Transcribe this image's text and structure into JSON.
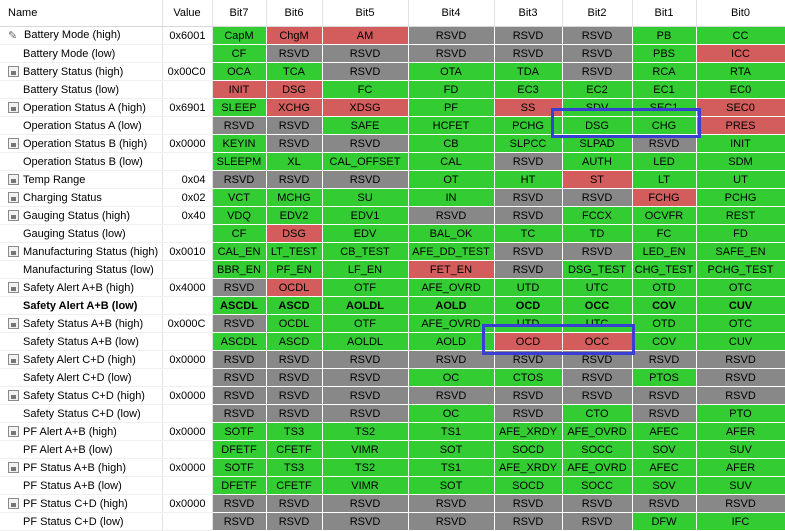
{
  "columns": [
    "Name",
    "Value",
    "Bit7",
    "Bit6",
    "Bit5",
    "Bit4",
    "Bit3",
    "Bit2",
    "Bit1",
    "Bit0"
  ],
  "rows": [
    {
      "icon": "pen",
      "name": "Battery Mode (high)",
      "value": "0x6001",
      "bold": false,
      "bits": [
        [
          "CapM",
          "g"
        ],
        [
          "ChgM",
          "r"
        ],
        [
          "AM",
          "r"
        ],
        [
          "RSVD",
          "y"
        ],
        [
          "RSVD",
          "y"
        ],
        [
          "RSVD",
          "y"
        ],
        [
          "PB",
          "g"
        ],
        [
          "CC",
          "g"
        ]
      ]
    },
    {
      "icon": "",
      "name": "Battery Mode (low)",
      "value": "",
      "bold": false,
      "bits": [
        [
          "CF",
          "g"
        ],
        [
          "RSVD",
          "y"
        ],
        [
          "RSVD",
          "y"
        ],
        [
          "RSVD",
          "y"
        ],
        [
          "RSVD",
          "y"
        ],
        [
          "RSVD",
          "y"
        ],
        [
          "PBS",
          "g"
        ],
        [
          "ICC",
          "r"
        ]
      ]
    },
    {
      "icon": "lock",
      "name": "Battery Status (high)",
      "value": "0x00C0",
      "bold": false,
      "bits": [
        [
          "OCA",
          "g"
        ],
        [
          "TCA",
          "g"
        ],
        [
          "RSVD",
          "y"
        ],
        [
          "OTA",
          "g"
        ],
        [
          "TDA",
          "g"
        ],
        [
          "RSVD",
          "y"
        ],
        [
          "RCA",
          "g"
        ],
        [
          "RTA",
          "g"
        ]
      ]
    },
    {
      "icon": "",
      "name": "Battery Status (low)",
      "value": "",
      "bold": false,
      "bits": [
        [
          "INIT",
          "r"
        ],
        [
          "DSG",
          "r"
        ],
        [
          "FC",
          "g"
        ],
        [
          "FD",
          "g"
        ],
        [
          "EC3",
          "g"
        ],
        [
          "EC2",
          "g"
        ],
        [
          "EC1",
          "g"
        ],
        [
          "EC0",
          "g"
        ]
      ]
    },
    {
      "icon": "lock",
      "name": "Operation Status A (high)",
      "value": "0x6901",
      "bold": false,
      "bits": [
        [
          "SLEEP",
          "g"
        ],
        [
          "XCHG",
          "r"
        ],
        [
          "XDSG",
          "r"
        ],
        [
          "PF",
          "g"
        ],
        [
          "SS",
          "r"
        ],
        [
          "SDV",
          "g"
        ],
        [
          "SEC1",
          "g"
        ],
        [
          "SEC0",
          "r"
        ]
      ]
    },
    {
      "icon": "",
      "name": "Operation Status A (low)",
      "value": "",
      "bold": false,
      "bits": [
        [
          "RSVD",
          "y"
        ],
        [
          "RSVD",
          "y"
        ],
        [
          "SAFE",
          "g"
        ],
        [
          "HCFET",
          "g"
        ],
        [
          "PCHG",
          "g"
        ],
        [
          "DSG",
          "g"
        ],
        [
          "CHG",
          "g"
        ],
        [
          "PRES",
          "r"
        ]
      ]
    },
    {
      "icon": "lock",
      "name": "Operation Status B (high)",
      "value": "0x0000",
      "bold": false,
      "bits": [
        [
          "KEYIN",
          "g"
        ],
        [
          "RSVD",
          "y"
        ],
        [
          "RSVD",
          "y"
        ],
        [
          "CB",
          "g"
        ],
        [
          "SLPCC",
          "g"
        ],
        [
          "SLPAD",
          "g"
        ],
        [
          "RSVD",
          "y"
        ],
        [
          "INIT",
          "g"
        ]
      ]
    },
    {
      "icon": "",
      "name": "Operation Status B (low)",
      "value": "",
      "bold": false,
      "bits": [
        [
          "SLEEPM",
          "g"
        ],
        [
          "XL",
          "g"
        ],
        [
          "CAL_OFFSET",
          "g"
        ],
        [
          "CAL",
          "g"
        ],
        [
          "RSVD",
          "y"
        ],
        [
          "AUTH",
          "g"
        ],
        [
          "LED",
          "g"
        ],
        [
          "SDM",
          "g"
        ]
      ]
    },
    {
      "icon": "lock",
      "name": "Temp Range",
      "value": "0x04",
      "bold": false,
      "bits": [
        [
          "RSVD",
          "y"
        ],
        [
          "RSVD",
          "y"
        ],
        [
          "RSVD",
          "y"
        ],
        [
          "OT",
          "g"
        ],
        [
          "HT",
          "g"
        ],
        [
          "ST",
          "r"
        ],
        [
          "LT",
          "g"
        ],
        [
          "UT",
          "g"
        ]
      ]
    },
    {
      "icon": "lock",
      "name": "Charging Status",
      "value": "0x02",
      "bold": false,
      "bits": [
        [
          "VCT",
          "g"
        ],
        [
          "MCHG",
          "g"
        ],
        [
          "SU",
          "g"
        ],
        [
          "IN",
          "g"
        ],
        [
          "RSVD",
          "y"
        ],
        [
          "RSVD",
          "y"
        ],
        [
          "FCHG",
          "r"
        ],
        [
          "PCHG",
          "g"
        ]
      ]
    },
    {
      "icon": "lock",
      "name": "Gauging Status (high)",
      "value": "0x40",
      "bold": false,
      "bits": [
        [
          "VDQ",
          "g"
        ],
        [
          "EDV2",
          "g"
        ],
        [
          "EDV1",
          "g"
        ],
        [
          "RSVD",
          "y"
        ],
        [
          "RSVD",
          "y"
        ],
        [
          "FCCX",
          "g"
        ],
        [
          "OCVFR",
          "g"
        ],
        [
          "REST",
          "g"
        ]
      ]
    },
    {
      "icon": "",
      "name": "Gauging Status (low)",
      "value": "",
      "bold": false,
      "bits": [
        [
          "CF",
          "g"
        ],
        [
          "DSG",
          "r"
        ],
        [
          "EDV",
          "g"
        ],
        [
          "BAL_OK",
          "g"
        ],
        [
          "TC",
          "g"
        ],
        [
          "TD",
          "g"
        ],
        [
          "FC",
          "g"
        ],
        [
          "FD",
          "g"
        ]
      ]
    },
    {
      "icon": "lock",
      "name": "Manufacturing Status (high)",
      "value": "0x0010",
      "bold": false,
      "bits": [
        [
          "CAL_EN",
          "g"
        ],
        [
          "LT_TEST",
          "g"
        ],
        [
          "CB_TEST",
          "g"
        ],
        [
          "AFE_DD_TEST",
          "g"
        ],
        [
          "RSVD",
          "y"
        ],
        [
          "RSVD",
          "y"
        ],
        [
          "LED_EN",
          "g"
        ],
        [
          "SAFE_EN",
          "g"
        ]
      ]
    },
    {
      "icon": "",
      "name": "Manufacturing Status (low)",
      "value": "",
      "bold": false,
      "bits": [
        [
          "BBR_EN",
          "g"
        ],
        [
          "PF_EN",
          "g"
        ],
        [
          "LF_EN",
          "g"
        ],
        [
          "FET_EN",
          "r"
        ],
        [
          "RSVD",
          "y"
        ],
        [
          "DSG_TEST",
          "g"
        ],
        [
          "CHG_TEST",
          "g"
        ],
        [
          "PCHG_TEST",
          "g"
        ]
      ]
    },
    {
      "icon": "lock",
      "name": "Safety Alert A+B (high)",
      "value": "0x4000",
      "bold": false,
      "bits": [
        [
          "RSVD",
          "y"
        ],
        [
          "OCDL",
          "r"
        ],
        [
          "OTF",
          "g"
        ],
        [
          "AFE_OVRD",
          "g"
        ],
        [
          "UTD",
          "g"
        ],
        [
          "UTC",
          "g"
        ],
        [
          "OTD",
          "g"
        ],
        [
          "OTC",
          "g"
        ]
      ]
    },
    {
      "icon": "",
      "name": "Safety Alert A+B (low)",
      "value": "",
      "bold": true,
      "bits": [
        [
          "ASCDL",
          "g"
        ],
        [
          "ASCD",
          "g"
        ],
        [
          "AOLDL",
          "g"
        ],
        [
          "AOLD",
          "g"
        ],
        [
          "OCD",
          "g"
        ],
        [
          "OCC",
          "g"
        ],
        [
          "COV",
          "g"
        ],
        [
          "CUV",
          "g"
        ]
      ]
    },
    {
      "icon": "lock",
      "name": "Safety Status A+B (high)",
      "value": "0x000C",
      "bold": false,
      "bits": [
        [
          "RSVD",
          "y"
        ],
        [
          "OCDL",
          "g"
        ],
        [
          "OTF",
          "g"
        ],
        [
          "AFE_OVRD",
          "g"
        ],
        [
          "UTD",
          "g"
        ],
        [
          "UTC",
          "g"
        ],
        [
          "OTD",
          "g"
        ],
        [
          "OTC",
          "g"
        ]
      ]
    },
    {
      "icon": "",
      "name": "Safety Status A+B (low)",
      "value": "",
      "bold": false,
      "bits": [
        [
          "ASCDL",
          "g"
        ],
        [
          "ASCD",
          "g"
        ],
        [
          "AOLDL",
          "g"
        ],
        [
          "AOLD",
          "g"
        ],
        [
          "OCD",
          "r"
        ],
        [
          "OCC",
          "r"
        ],
        [
          "COV",
          "g"
        ],
        [
          "CUV",
          "g"
        ]
      ]
    },
    {
      "icon": "lock",
      "name": "Safety Alert C+D (high)",
      "value": "0x0000",
      "bold": false,
      "bits": [
        [
          "RSVD",
          "y"
        ],
        [
          "RSVD",
          "y"
        ],
        [
          "RSVD",
          "y"
        ],
        [
          "RSVD",
          "y"
        ],
        [
          "RSVD",
          "y"
        ],
        [
          "RSVD",
          "y"
        ],
        [
          "RSVD",
          "y"
        ],
        [
          "RSVD",
          "y"
        ]
      ]
    },
    {
      "icon": "",
      "name": "Safety Alert C+D (low)",
      "value": "",
      "bold": false,
      "bits": [
        [
          "RSVD",
          "y"
        ],
        [
          "RSVD",
          "y"
        ],
        [
          "RSVD",
          "y"
        ],
        [
          "OC",
          "g"
        ],
        [
          "CTOS",
          "g"
        ],
        [
          "RSVD",
          "y"
        ],
        [
          "PTOS",
          "g"
        ],
        [
          "RSVD",
          "y"
        ]
      ]
    },
    {
      "icon": "lock",
      "name": "Safety Status C+D (high)",
      "value": "0x0000",
      "bold": false,
      "bits": [
        [
          "RSVD",
          "y"
        ],
        [
          "RSVD",
          "y"
        ],
        [
          "RSVD",
          "y"
        ],
        [
          "RSVD",
          "y"
        ],
        [
          "RSVD",
          "y"
        ],
        [
          "RSVD",
          "y"
        ],
        [
          "RSVD",
          "y"
        ],
        [
          "RSVD",
          "y"
        ]
      ]
    },
    {
      "icon": "",
      "name": "Safety Status C+D (low)",
      "value": "",
      "bold": false,
      "bits": [
        [
          "RSVD",
          "y"
        ],
        [
          "RSVD",
          "y"
        ],
        [
          "RSVD",
          "y"
        ],
        [
          "OC",
          "g"
        ],
        [
          "RSVD",
          "y"
        ],
        [
          "CTO",
          "g"
        ],
        [
          "RSVD",
          "y"
        ],
        [
          "PTO",
          "g"
        ]
      ]
    },
    {
      "icon": "lock",
      "name": "PF Alert A+B (high)",
      "value": "0x0000",
      "bold": false,
      "bits": [
        [
          "SOTF",
          "g"
        ],
        [
          "TS3",
          "g"
        ],
        [
          "TS2",
          "g"
        ],
        [
          "TS1",
          "g"
        ],
        [
          "AFE_XRDY",
          "g"
        ],
        [
          "AFE_OVRD",
          "g"
        ],
        [
          "AFEC",
          "g"
        ],
        [
          "AFER",
          "g"
        ]
      ]
    },
    {
      "icon": "",
      "name": "PF Alert A+B (low)",
      "value": "",
      "bold": false,
      "bits": [
        [
          "DFETF",
          "g"
        ],
        [
          "CFETF",
          "g"
        ],
        [
          "VIMR",
          "g"
        ],
        [
          "SOT",
          "g"
        ],
        [
          "SOCD",
          "g"
        ],
        [
          "SOCC",
          "g"
        ],
        [
          "SOV",
          "g"
        ],
        [
          "SUV",
          "g"
        ]
      ]
    },
    {
      "icon": "lock",
      "name": "PF Status A+B (high)",
      "value": "0x0000",
      "bold": false,
      "bits": [
        [
          "SOTF",
          "g"
        ],
        [
          "TS3",
          "g"
        ],
        [
          "TS2",
          "g"
        ],
        [
          "TS1",
          "g"
        ],
        [
          "AFE_XRDY",
          "g"
        ],
        [
          "AFE_OVRD",
          "g"
        ],
        [
          "AFEC",
          "g"
        ],
        [
          "AFER",
          "g"
        ]
      ]
    },
    {
      "icon": "",
      "name": "PF Status A+B (low)",
      "value": "",
      "bold": false,
      "bits": [
        [
          "DFETF",
          "g"
        ],
        [
          "CFETF",
          "g"
        ],
        [
          "VIMR",
          "g"
        ],
        [
          "SOT",
          "g"
        ],
        [
          "SOCD",
          "g"
        ],
        [
          "SOCC",
          "g"
        ],
        [
          "SOV",
          "g"
        ],
        [
          "SUV",
          "g"
        ]
      ]
    },
    {
      "icon": "lock",
      "name": "PF Status C+D (high)",
      "value": "0x0000",
      "bold": false,
      "bits": [
        [
          "RSVD",
          "y"
        ],
        [
          "RSVD",
          "y"
        ],
        [
          "RSVD",
          "y"
        ],
        [
          "RSVD",
          "y"
        ],
        [
          "RSVD",
          "y"
        ],
        [
          "RSVD",
          "y"
        ],
        [
          "RSVD",
          "y"
        ],
        [
          "RSVD",
          "y"
        ]
      ]
    },
    {
      "icon": "",
      "name": "PF Status C+D (low)",
      "value": "",
      "bold": false,
      "bits": [
        [
          "RSVD",
          "y"
        ],
        [
          "RSVD",
          "y"
        ],
        [
          "RSVD",
          "y"
        ],
        [
          "RSVD",
          "y"
        ],
        [
          "RSVD",
          "y"
        ],
        [
          "RSVD",
          "y"
        ],
        [
          "DFW",
          "g"
        ],
        [
          "IFC",
          "g"
        ]
      ]
    }
  ],
  "colors": {
    "on": "#33cc33",
    "alert": "#d35c5c",
    "reserved": "#888888",
    "highlight": "#3a3fd4"
  }
}
